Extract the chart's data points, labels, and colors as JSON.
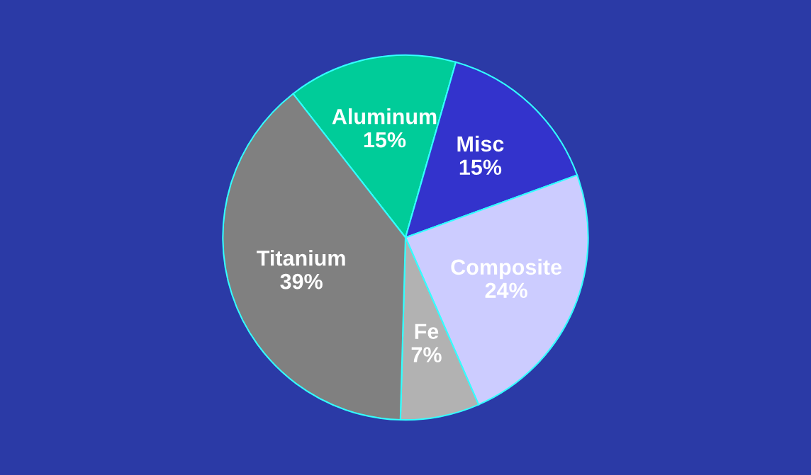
{
  "chart_data": {
    "type": "pie",
    "categories": [
      "Aluminum",
      "Misc",
      "Composite",
      "Fe",
      "Titanium"
    ],
    "values": [
      15,
      15,
      24,
      7,
      39
    ],
    "value_labels": [
      "15%",
      "15%",
      "24%",
      "7%",
      "39%"
    ],
    "colors": [
      "#00cc99",
      "#3333cc",
      "#ccccff",
      "#b2b2b2",
      "#808080"
    ],
    "legend": false
  }
}
